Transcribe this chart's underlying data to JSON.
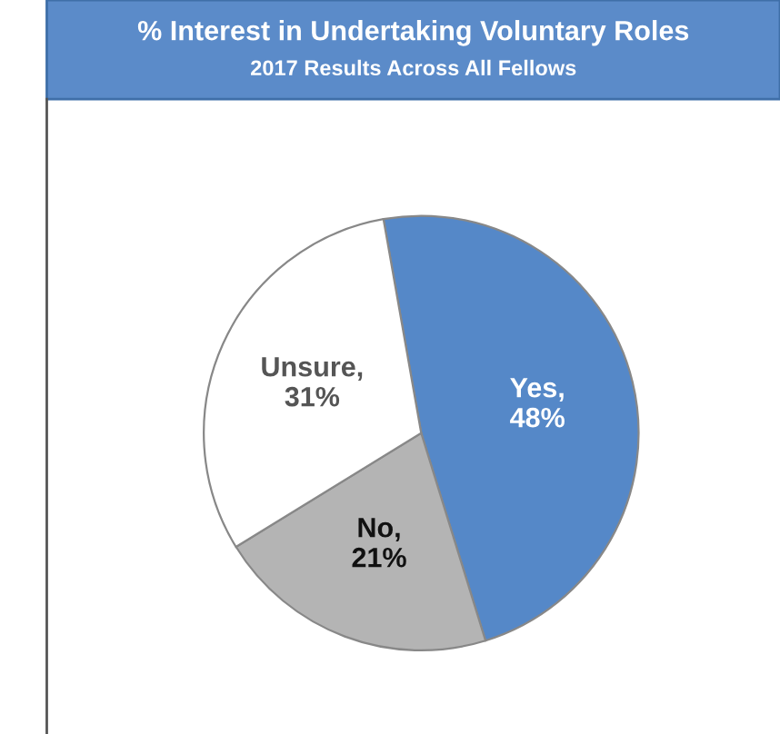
{
  "chart_data": {
    "type": "pie",
    "title": "% Interest in Undertaking Voluntary Roles",
    "subtitle": "2017 Results Across All Fellows",
    "categories": [
      "Yes",
      "No",
      "Unsure"
    ],
    "values": [
      48,
      21,
      31
    ],
    "colors": [
      "#5588c8",
      "#b4b4b4",
      "#ffffff"
    ],
    "value_labels": [
      ",\n48%",
      ",\n21%",
      ",\n31%"
    ],
    "legend": false
  }
}
